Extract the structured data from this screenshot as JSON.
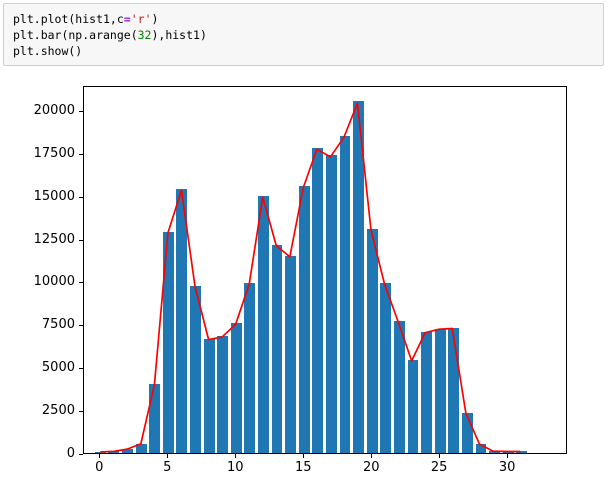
{
  "accent_colors": {
    "bar_blue": "#1f77b4",
    "line_red": "#ff0000",
    "cell_background": "#f7f7f7",
    "cell_border": "#cfcfcf",
    "syntax_operator": "#AA22FF",
    "syntax_string": "#BA2121",
    "syntax_number": "#008000"
  },
  "code_cell": {
    "lines": [
      [
        {
          "t": "plt.plot(hist1,c",
          "c": "plain"
        },
        {
          "t": "=",
          "c": "op"
        },
        {
          "t": "'r'",
          "c": "str"
        },
        {
          "t": ")",
          "c": "plain"
        }
      ],
      [
        {
          "t": "plt.bar(np.arange(",
          "c": "plain"
        },
        {
          "t": "32",
          "c": "num"
        },
        {
          "t": "),hist1)",
          "c": "plain"
        }
      ],
      [
        {
          "t": "plt.show()",
          "c": "plain"
        }
      ]
    ]
  },
  "chart_data": {
    "type": "bar",
    "overlay": "line",
    "title": "",
    "xlabel": "",
    "ylabel": "",
    "x": [
      0,
      1,
      2,
      3,
      4,
      5,
      6,
      7,
      8,
      9,
      10,
      11,
      12,
      13,
      14,
      15,
      16,
      17,
      18,
      19,
      20,
      21,
      22,
      23,
      24,
      25,
      26,
      27,
      28,
      29,
      30,
      31
    ],
    "values": [
      60,
      100,
      230,
      540,
      4000,
      12900,
      15400,
      9750,
      6650,
      6800,
      7550,
      9900,
      15000,
      12150,
      11500,
      15550,
      17800,
      17350,
      18500,
      20500,
      13050,
      9900,
      7700,
      5400,
      7050,
      7250,
      7300,
      2350,
      530,
      110,
      90,
      90
    ],
    "series": [
      {
        "name": "plt.bar(np.arange(32),hist1)",
        "type": "bar",
        "color": "#1f77b4"
      },
      {
        "name": "plt.plot(hist1,c='r')",
        "type": "line",
        "color": "#ff0000"
      }
    ],
    "bar_width": 0.8,
    "xlim": [
      -1.2,
      34.4
    ],
    "ylim": [
      0,
      21450
    ],
    "xticks": [
      0,
      5,
      10,
      15,
      20,
      25,
      30
    ],
    "yticks": [
      0,
      2500,
      5000,
      7500,
      10000,
      12500,
      15000,
      17500,
      20000
    ],
    "grid": false,
    "legend": false
  }
}
